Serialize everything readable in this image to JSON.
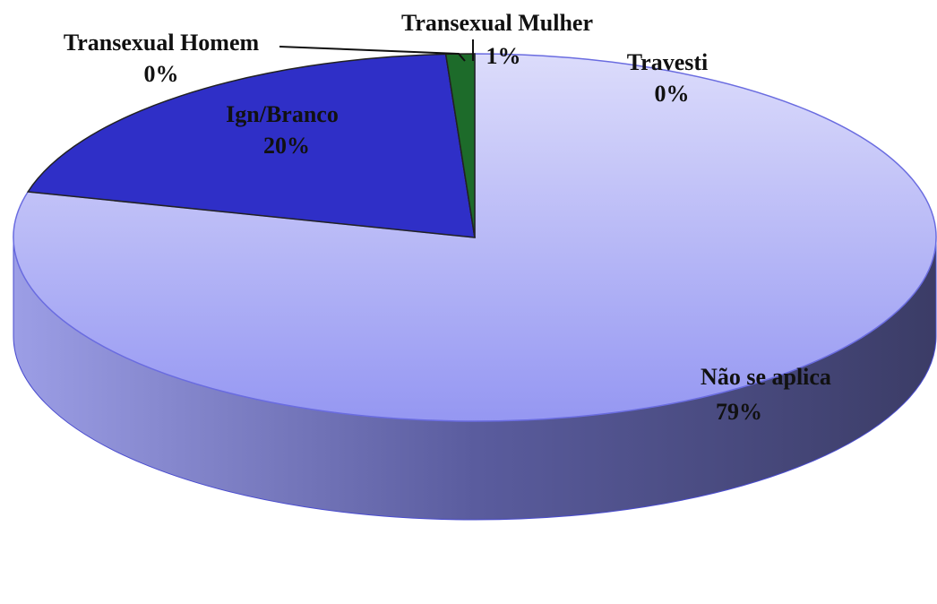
{
  "chart_data": {
    "type": "pie",
    "categories": [
      "Travesti",
      "Não se aplica",
      "Ign/Branco",
      "Transexual Homem",
      "Transexual Mulher"
    ],
    "values": [
      0,
      79,
      20,
      0,
      1
    ],
    "value_labels": [
      "0%",
      "79%",
      "20%",
      "0%",
      "1%"
    ],
    "colors": [
      "#dfe0fb",
      "#a9abf3",
      "#2f2fc7",
      "#ffffff",
      "#1d6b2a"
    ]
  }
}
